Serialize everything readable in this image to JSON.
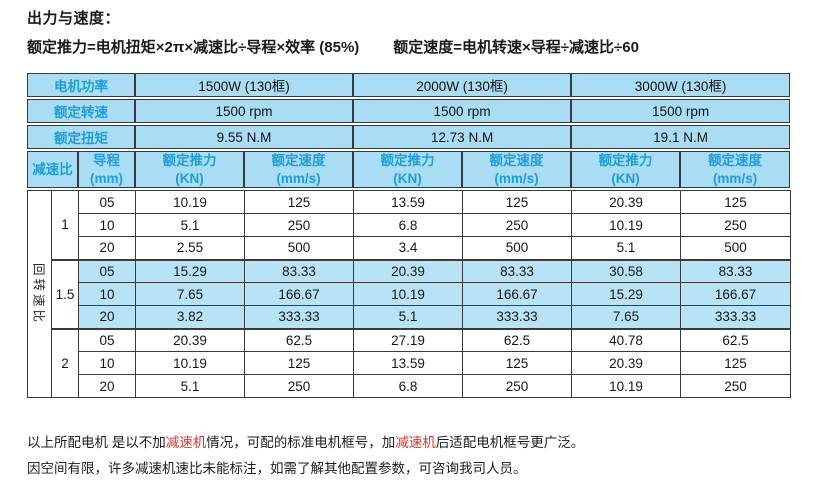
{
  "page": {
    "title": "出力与速度：",
    "formula_thrust": "额定推力=电机扭矩×2π×减速比÷导程×效率 (85%)",
    "formula_speed": "额定速度=电机转速×导程÷减速比÷60"
  },
  "colors": {
    "header_text_blue": "#1f9ed8",
    "header_cell_blue": "#a9ddf4",
    "highlight_band_blue": "#b7e3f6",
    "grid_line": "#3a3a3a",
    "note_red": "#e03226"
  },
  "table": {
    "motor_power": {
      "label": "电机功率",
      "values": [
        "1500W (130框)",
        "2000W (130框)",
        "3000W (130框)"
      ]
    },
    "rated_speed": {
      "label": "额定转速",
      "values": [
        "1500 rpm",
        "1500 rpm",
        "1500 rpm"
      ]
    },
    "rated_torque": {
      "label": "额定扭矩",
      "values": [
        "9.55 N.M",
        "12.73 N.M",
        "19.1 N.M"
      ]
    },
    "col_headers": {
      "ratio": "减速比",
      "lead": "导程\n(mm)",
      "thrust": "额定推力\n(KN)",
      "speed": "额定速度\n(mm/s)"
    },
    "side_label": "回转速比",
    "rows": [
      {
        "ratio": "1",
        "lead": "05",
        "values": [
          "10.19",
          "125",
          "13.59",
          "125",
          "20.39",
          "125"
        ]
      },
      {
        "ratio": "1",
        "lead": "10",
        "values": [
          "5.1",
          "250",
          "6.8",
          "250",
          "10.19",
          "250"
        ]
      },
      {
        "ratio": "1",
        "lead": "20",
        "values": [
          "2.55",
          "500",
          "3.4",
          "500",
          "5.1",
          "500"
        ]
      },
      {
        "ratio": "1.5",
        "lead": "05",
        "values": [
          "15.29",
          "83.33",
          "20.39",
          "83.33",
          "30.58",
          "83.33"
        ]
      },
      {
        "ratio": "1.5",
        "lead": "10",
        "values": [
          "7.65",
          "166.67",
          "10.19",
          "166.67",
          "15.29",
          "166.67"
        ]
      },
      {
        "ratio": "1.5",
        "lead": "20",
        "values": [
          "3.82",
          "333.33",
          "5.1",
          "333.33",
          "7.65",
          "333.33"
        ]
      },
      {
        "ratio": "2",
        "lead": "05",
        "values": [
          "20.39",
          "62.5",
          "27.19",
          "62.5",
          "40.78",
          "62.5"
        ]
      },
      {
        "ratio": "2",
        "lead": "10",
        "values": [
          "10.19",
          "125",
          "13.59",
          "125",
          "20.39",
          "125"
        ]
      },
      {
        "ratio": "2",
        "lead": "20",
        "values": [
          "5.1",
          "250",
          "6.8",
          "250",
          "10.19",
          "250"
        ]
      }
    ]
  },
  "notes": {
    "line1": [
      {
        "text": "以上所配电机 是以不加"
      },
      {
        "text": "减速机"
      },
      {
        "text": "情况，可配的标准电机框号，加"
      },
      {
        "text": "减速机"
      },
      {
        "text": "后适配电机框号更广泛。"
      }
    ],
    "line2": "因空间有限，许多减速机速比未能标注，如需了解其他配置参数，可咨询我司人员。"
  }
}
